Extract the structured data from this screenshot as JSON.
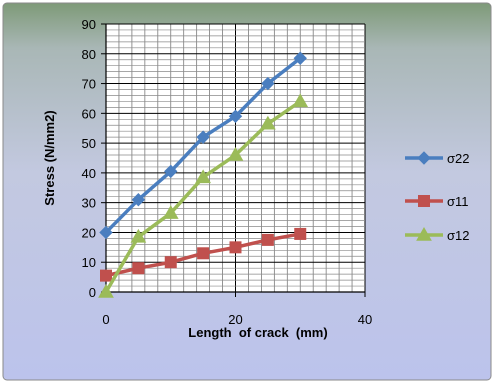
{
  "chart_data": {
    "type": "line",
    "title": "",
    "xlabel": "Length  of crack  (mm)",
    "ylabel": "Stress (N/mm2)",
    "xlim": [
      0,
      40
    ],
    "ylim": [
      0,
      90
    ],
    "x_ticks": [
      0,
      20,
      40
    ],
    "y_ticks": [
      0,
      10,
      20,
      30,
      40,
      50,
      60,
      70,
      80,
      90
    ],
    "grid": true,
    "legend_position": "right",
    "series": [
      {
        "name": "σ22",
        "color": "#4a7ebf",
        "marker": "diamond",
        "x": [
          0,
          5,
          10,
          15,
          20,
          25,
          30
        ],
        "y": [
          20,
          31,
          40.5,
          52,
          59,
          70,
          78.5
        ]
      },
      {
        "name": "σ11",
        "color": "#c0504d",
        "marker": "square",
        "x": [
          0,
          5,
          10,
          15,
          20,
          25,
          30
        ],
        "y": [
          5.5,
          8,
          10,
          13,
          15,
          17.5,
          19.5
        ]
      },
      {
        "name": "σ12",
        "color": "#9bbb59",
        "marker": "triangle",
        "x": [
          0,
          5,
          10,
          15,
          20,
          25,
          30
        ],
        "y": [
          0,
          18.5,
          26.5,
          38.5,
          46,
          56.5,
          64
        ]
      }
    ]
  }
}
